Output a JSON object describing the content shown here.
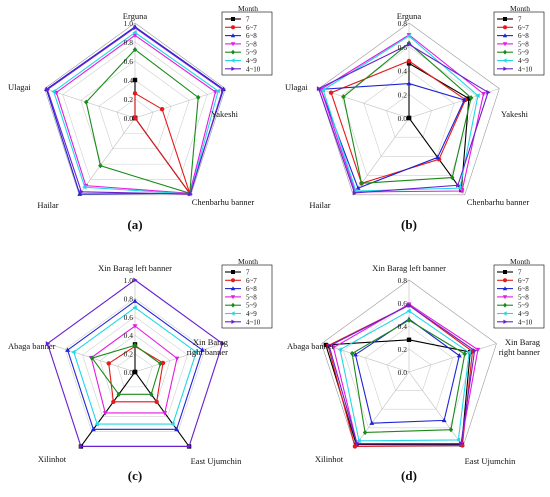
{
  "legend_title": "Month",
  "legend_items": [
    {
      "label": "7",
      "color": "#000000",
      "marker": "square"
    },
    {
      "label": "6~7",
      "color": "#e41a1c",
      "marker": "circle"
    },
    {
      "label": "6~8",
      "color": "#1f23d6",
      "marker": "triangle-up"
    },
    {
      "label": "5~8",
      "color": "#e41ae0",
      "marker": "triangle-down"
    },
    {
      "label": "5~9",
      "color": "#1a8a1a",
      "marker": "diamond"
    },
    {
      "label": "4~9",
      "color": "#22d8e6",
      "marker": "triangle-left"
    },
    {
      "label": "4~10",
      "color": "#6a1fd1",
      "marker": "triangle-right"
    }
  ],
  "chart_data": [
    {
      "type": "radar",
      "panel_label": "(a)",
      "axes": [
        "Erguna",
        "Yakeshi",
        "Chenbarhu banner",
        "Hailar",
        "Ulagai"
      ],
      "rmax": 1.0,
      "ticks": [
        0.0,
        0.2,
        0.4,
        0.6,
        0.8,
        1.0
      ],
      "tick_labels": [
        "0.0",
        "0.2",
        "0.4",
        "0.6",
        "0.8",
        "1.0"
      ],
      "series": [
        {
          "name": "7",
          "values": [
            0.4,
            0.0,
            0.98,
            0.0,
            0.0
          ]
        },
        {
          "name": "6~7",
          "values": [
            0.26,
            0.3,
            0.98,
            0.0,
            0.0
          ]
        },
        {
          "name": "6~8",
          "values": [
            0.96,
            0.98,
            0.98,
            0.99,
            0.98
          ]
        },
        {
          "name": "5~8",
          "values": [
            0.87,
            0.89,
            0.98,
            0.88,
            0.87
          ]
        },
        {
          "name": "5~9",
          "values": [
            0.72,
            0.7,
            0.98,
            0.62,
            0.54
          ]
        },
        {
          "name": "4~9",
          "values": [
            0.9,
            0.92,
            0.99,
            0.9,
            0.9
          ]
        },
        {
          "name": "4~10",
          "values": [
            0.95,
            0.97,
            0.99,
            0.96,
            0.97
          ]
        }
      ]
    },
    {
      "type": "radar",
      "panel_label": "(b)",
      "axes": [
        "Erguna",
        "Yakeshi",
        "Chenbarhu banner",
        "Hailar",
        "Ulagai"
      ],
      "rmax": 0.8,
      "ticks": [
        0.0,
        0.2,
        0.4,
        0.6,
        0.8
      ],
      "tick_labels": [
        "0.0",
        "0.2",
        "0.4",
        "0.6",
        "0.8"
      ],
      "series": [
        {
          "name": "7",
          "values": [
            0.46,
            0.53,
            0.75,
            0.0,
            0.0
          ]
        },
        {
          "name": "6~7",
          "values": [
            0.48,
            0.5,
            0.43,
            0.68,
            0.69
          ]
        },
        {
          "name": "6~8",
          "values": [
            0.29,
            0.49,
            0.41,
            0.73,
            0.78
          ]
        },
        {
          "name": "5~8",
          "values": [
            0.7,
            0.66,
            0.76,
            0.77,
            0.78
          ]
        },
        {
          "name": "5~9",
          "values": [
            0.63,
            0.55,
            0.62,
            0.68,
            0.58
          ]
        },
        {
          "name": "4~9",
          "values": [
            0.69,
            0.61,
            0.73,
            0.76,
            0.76
          ]
        },
        {
          "name": "4~10",
          "values": [
            0.62,
            0.7,
            0.7,
            0.78,
            0.8
          ]
        }
      ]
    },
    {
      "type": "radar",
      "panel_label": "(c)",
      "axes": [
        "Xin Barag left banner",
        "Xin Barag\nright banner",
        "East Ujumchin",
        "Xilinhot",
        "Abaga banner"
      ],
      "rmax": 1.0,
      "ticks": [
        0.0,
        0.2,
        0.4,
        0.6,
        0.8,
        1.0
      ],
      "tick_labels": [
        "0.0",
        "0.2",
        "0.4",
        "0.6",
        "0.8",
        "1.0"
      ],
      "series": [
        {
          "name": "7",
          "values": [
            0.3,
            0.0,
            1.0,
            1.0,
            0.0
          ]
        },
        {
          "name": "6~7",
          "values": [
            0.28,
            0.32,
            0.4,
            0.4,
            0.3
          ]
        },
        {
          "name": "6~8",
          "values": [
            0.77,
            0.77,
            0.77,
            0.77,
            0.77
          ]
        },
        {
          "name": "5~8",
          "values": [
            0.5,
            0.48,
            0.55,
            0.55,
            0.5
          ]
        },
        {
          "name": "5~9",
          "values": [
            0.29,
            0.29,
            0.3,
            0.3,
            0.49
          ]
        },
        {
          "name": "4~9",
          "values": [
            0.7,
            0.7,
            0.7,
            0.7,
            0.7
          ]
        },
        {
          "name": "4~10",
          "values": [
            1.0,
            1.0,
            1.0,
            1.0,
            1.0
          ]
        }
      ]
    },
    {
      "type": "radar",
      "panel_label": "(d)",
      "axes": [
        "Xin Barag left banner",
        "Xin Barag\nright banner",
        "East Ujumchin",
        "Xilinhot",
        "Abaga banner"
      ],
      "rmax": 0.8,
      "ticks": [
        0.0,
        0.2,
        0.4,
        0.6,
        0.8
      ],
      "tick_labels": [
        "0.0",
        "0.2",
        "0.4",
        "0.6",
        "0.8"
      ],
      "series": [
        {
          "name": "7",
          "values": [
            0.28,
            0.56,
            0.78,
            0.78,
            0.76
          ]
        },
        {
          "name": "6~7",
          "values": [
            0.58,
            0.58,
            0.79,
            0.8,
            0.74
          ]
        },
        {
          "name": "6~8",
          "values": [
            0.46,
            0.46,
            0.52,
            0.55,
            0.49
          ]
        },
        {
          "name": "5~8",
          "values": [
            0.59,
            0.63,
            0.77,
            0.77,
            0.69
          ]
        },
        {
          "name": "5~9",
          "values": [
            0.45,
            0.51,
            0.62,
            0.65,
            0.52
          ]
        },
        {
          "name": "4~9",
          "values": [
            0.53,
            0.55,
            0.73,
            0.74,
            0.63
          ]
        },
        {
          "name": "4~10",
          "values": [
            0.58,
            0.6,
            0.77,
            0.77,
            0.73
          ]
        }
      ]
    }
  ]
}
